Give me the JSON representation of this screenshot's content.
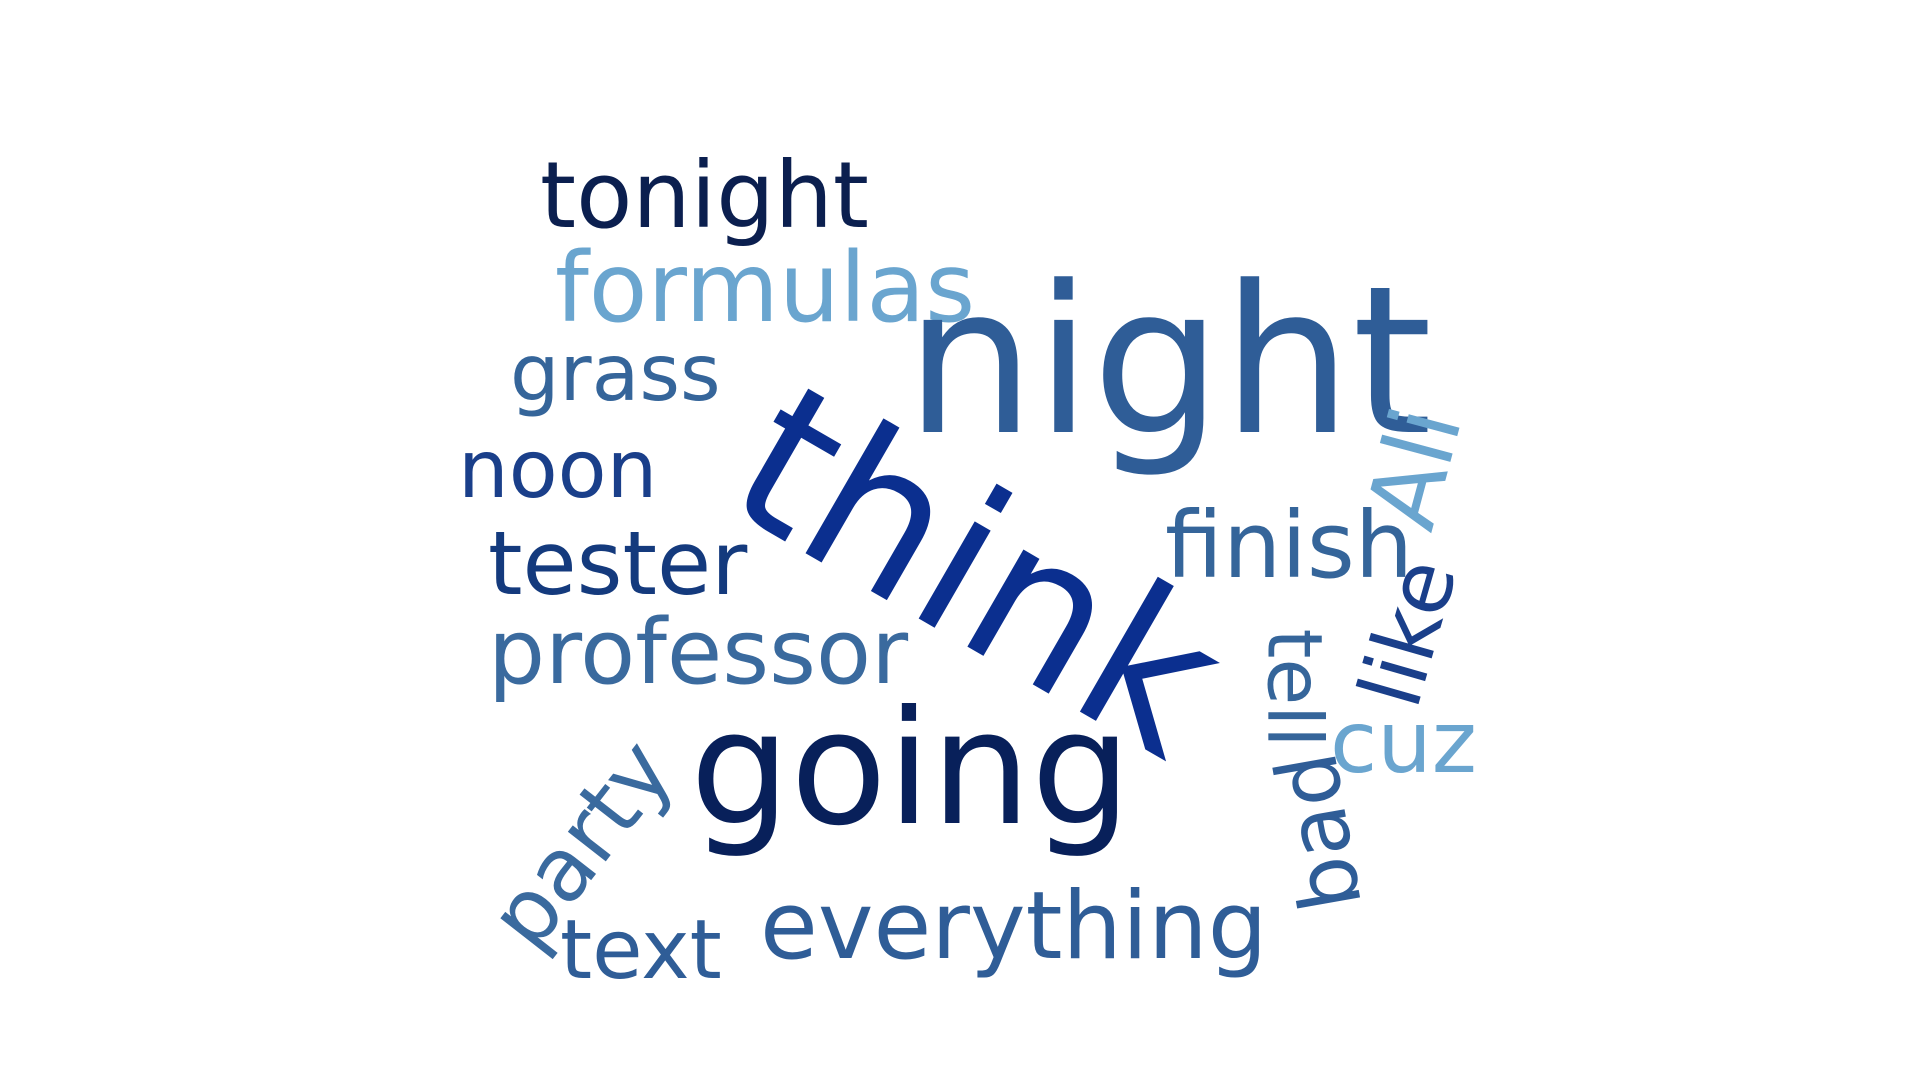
{
  "words": [
    {
      "text": "tonight",
      "color": "#0b1f4f"
    },
    {
      "text": "formulas",
      "color": "#6aa5cf"
    },
    {
      "text": "grass",
      "color": "#35659a"
    },
    {
      "text": "night",
      "color": "#2f5d97"
    },
    {
      "text": "noon",
      "color": "#1a3f8a"
    },
    {
      "text": "think",
      "color": "#0b2f8f"
    },
    {
      "text": "Ali",
      "color": "#6aa5cf"
    },
    {
      "text": "tester",
      "color": "#143a7d"
    },
    {
      "text": "finish",
      "color": "#35659a"
    },
    {
      "text": "professor",
      "color": "#3a6a9e"
    },
    {
      "text": "like",
      "color": "#1a3f8a"
    },
    {
      "text": "tell",
      "color": "#35659a"
    },
    {
      "text": "going",
      "color": "#08205a"
    },
    {
      "text": "cuz",
      "color": "#6aa5cf"
    },
    {
      "text": "party",
      "color": "#3a6a9e"
    },
    {
      "text": "bad",
      "color": "#2f5d97"
    },
    {
      "text": "text",
      "color": "#2f5d97"
    },
    {
      "text": "everything",
      "color": "#2f5d97"
    }
  ]
}
